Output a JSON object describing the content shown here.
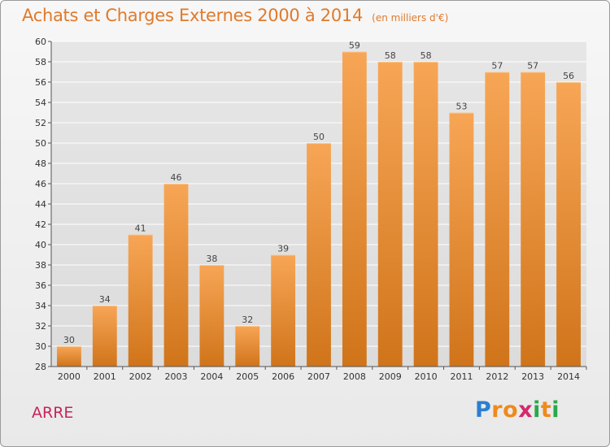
{
  "header": {
    "title": "Achats et Charges Externes 2000 à 2014",
    "subtitle": "(en milliers d'€)"
  },
  "commune": "ARRE",
  "logo": {
    "text": "Proxiti"
  },
  "colors": {
    "bar_top": "#f7a656",
    "bar_bottom": "#d0741a",
    "title": "#e07a2c",
    "commune": "#c8245a",
    "grid": "#ffffff"
  },
  "chart_data": {
    "type": "bar",
    "title": "Achats et Charges Externes 2000 à 2014",
    "subtitle": "(en milliers d'€)",
    "xlabel": "",
    "ylabel": "",
    "categories": [
      "2000",
      "2001",
      "2002",
      "2003",
      "2004",
      "2005",
      "2006",
      "2007",
      "2008",
      "2009",
      "2010",
      "2011",
      "2012",
      "2013",
      "2014"
    ],
    "values": [
      30,
      34,
      41,
      46,
      38,
      32,
      39,
      50,
      59,
      58,
      58,
      53,
      57,
      57,
      56
    ],
    "ylim": [
      28,
      60
    ],
    "yticks": [
      28,
      30,
      32,
      34,
      36,
      38,
      40,
      42,
      44,
      46,
      48,
      50,
      52,
      54,
      56,
      58,
      60
    ],
    "grid": true,
    "legend": "none"
  }
}
